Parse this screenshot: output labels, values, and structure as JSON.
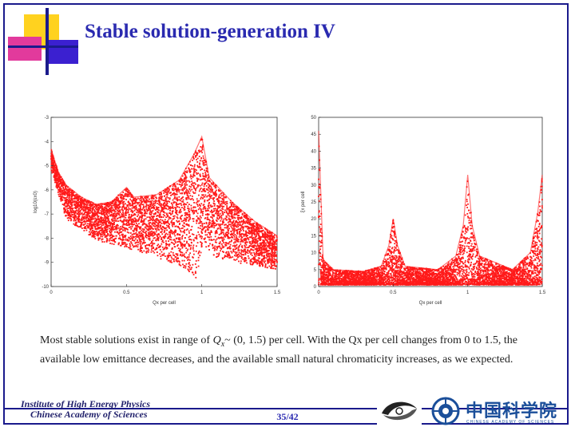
{
  "slide": {
    "title": "Stable solution-generation IV",
    "caption_parts": {
      "pre": "Most stable solutions exist in range of ",
      "q": "Q",
      "sub": "x",
      "post": "~ (0, 1.5) per cell. With the Qx per cell changes from 0 to 1.5, the available low emittance decreases, and the available small natural chromaticity increases, as we expected."
    },
    "page_number": "35/42"
  },
  "footer": {
    "institute_line1": "Institute of High Energy Physics",
    "institute_line2": "Chinese Academy of Sciences",
    "cas_logo_text": "中国科学院",
    "cas_logo_subtext": "CHINESE ACADEMY OF SCIENCES"
  },
  "colors": {
    "accent": "#2a2ab0",
    "points": "#ff1a1a",
    "frame": "#1a1a8c"
  },
  "chart_data": [
    {
      "type": "scatter",
      "title": "",
      "xlabel": "Qx per cell",
      "ylabel": "log10(εx0)",
      "xlim": [
        0,
        1.5
      ],
      "ylim": [
        -10,
        -3
      ],
      "xticks": [
        "0",
        "0.5",
        "1",
        "1.5"
      ],
      "yticks": [
        "-3",
        "-4",
        "-5",
        "-6",
        "-7",
        "-8",
        "-9",
        "-10"
      ],
      "upper_envelope": [
        [
          0.0,
          -4.3
        ],
        [
          0.05,
          -5.3
        ],
        [
          0.1,
          -5.8
        ],
        [
          0.2,
          -6.3
        ],
        [
          0.3,
          -6.6
        ],
        [
          0.4,
          -6.5
        ],
        [
          0.45,
          -6.2
        ],
        [
          0.5,
          -5.9
        ],
        [
          0.55,
          -6.3
        ],
        [
          0.7,
          -6.2
        ],
        [
          0.85,
          -5.6
        ],
        [
          0.95,
          -4.5
        ],
        [
          1.0,
          -3.8
        ],
        [
          1.05,
          -5.5
        ],
        [
          1.2,
          -6.5
        ],
        [
          1.35,
          -7.3
        ],
        [
          1.5,
          -7.9
        ]
      ],
      "lower_envelope": [
        [
          0.0,
          -5.2
        ],
        [
          0.1,
          -7.2
        ],
        [
          0.3,
          -8.1
        ],
        [
          0.5,
          -8.4
        ],
        [
          0.7,
          -8.8
        ],
        [
          0.9,
          -9.3
        ],
        [
          0.97,
          -9.7
        ],
        [
          1.0,
          -8.4
        ],
        [
          1.1,
          -8.8
        ],
        [
          1.3,
          -9.1
        ],
        [
          1.5,
          -9.3
        ]
      ]
    },
    {
      "type": "scatter",
      "title": "",
      "xlabel": "Qx per cell",
      "ylabel": "ξx per cell",
      "xlim": [
        0,
        1.5
      ],
      "ylim": [
        0,
        50
      ],
      "xticks": [
        "0",
        "0.5",
        "1",
        "1.5"
      ],
      "yticks": [
        "0",
        "5",
        "10",
        "15",
        "20",
        "25",
        "30",
        "35",
        "40",
        "45",
        "50"
      ],
      "upper_envelope": [
        [
          0.0,
          46
        ],
        [
          0.03,
          8
        ],
        [
          0.1,
          5
        ],
        [
          0.3,
          4.5
        ],
        [
          0.42,
          6
        ],
        [
          0.47,
          12
        ],
        [
          0.5,
          20
        ],
        [
          0.53,
          12
        ],
        [
          0.58,
          6
        ],
        [
          0.8,
          5
        ],
        [
          0.92,
          9
        ],
        [
          0.97,
          18
        ],
        [
          1.0,
          33
        ],
        [
          1.03,
          18
        ],
        [
          1.08,
          9
        ],
        [
          1.3,
          5
        ],
        [
          1.42,
          10
        ],
        [
          1.47,
          22
        ],
        [
          1.5,
          33
        ]
      ],
      "lower_envelope": [
        [
          0.0,
          0.5
        ],
        [
          0.5,
          0.5
        ],
        [
          1.0,
          0.5
        ],
        [
          1.5,
          0.5
        ]
      ]
    }
  ]
}
